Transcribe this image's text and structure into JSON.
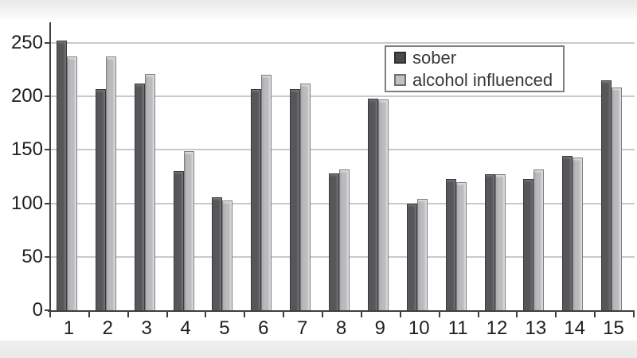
{
  "colors": {
    "sober_bar": "#57575a",
    "alcohol_bar": "#babbbd",
    "gridline": "#c9c9c9",
    "axis": "#3f3f3f",
    "background": "#ffffff",
    "letterbox_strip": "#e9e9ea"
  },
  "legend": {
    "items": [
      {
        "label": "sober",
        "swatch": "dark-gray-square"
      },
      {
        "label": "alcohol influenced",
        "swatch": "light-gray-square"
      }
    ]
  },
  "chart_data": {
    "type": "bar",
    "title": "",
    "xlabel": "",
    "ylabel": "",
    "categories": [
      "1",
      "2",
      "3",
      "4",
      "5",
      "6",
      "7",
      "8",
      "9",
      "10",
      "11",
      "12",
      "13",
      "14",
      "15"
    ],
    "series": [
      {
        "name": "sober",
        "color": "#57575a",
        "values": [
          252,
          207,
          212,
          130,
          106,
          207,
          207,
          128,
          198,
          100,
          123,
          127,
          123,
          144,
          215
        ]
      },
      {
        "name": "alcohol influenced",
        "color": "#babbbd",
        "values": [
          237,
          237,
          221,
          149,
          103,
          220,
          212,
          132,
          197,
          104,
          120,
          127,
          132,
          143,
          208
        ]
      }
    ],
    "ylim": [
      0,
      250
    ],
    "yticks": [
      0,
      50,
      100,
      150,
      200,
      250
    ],
    "grid": true,
    "legend_position": "top-center"
  }
}
